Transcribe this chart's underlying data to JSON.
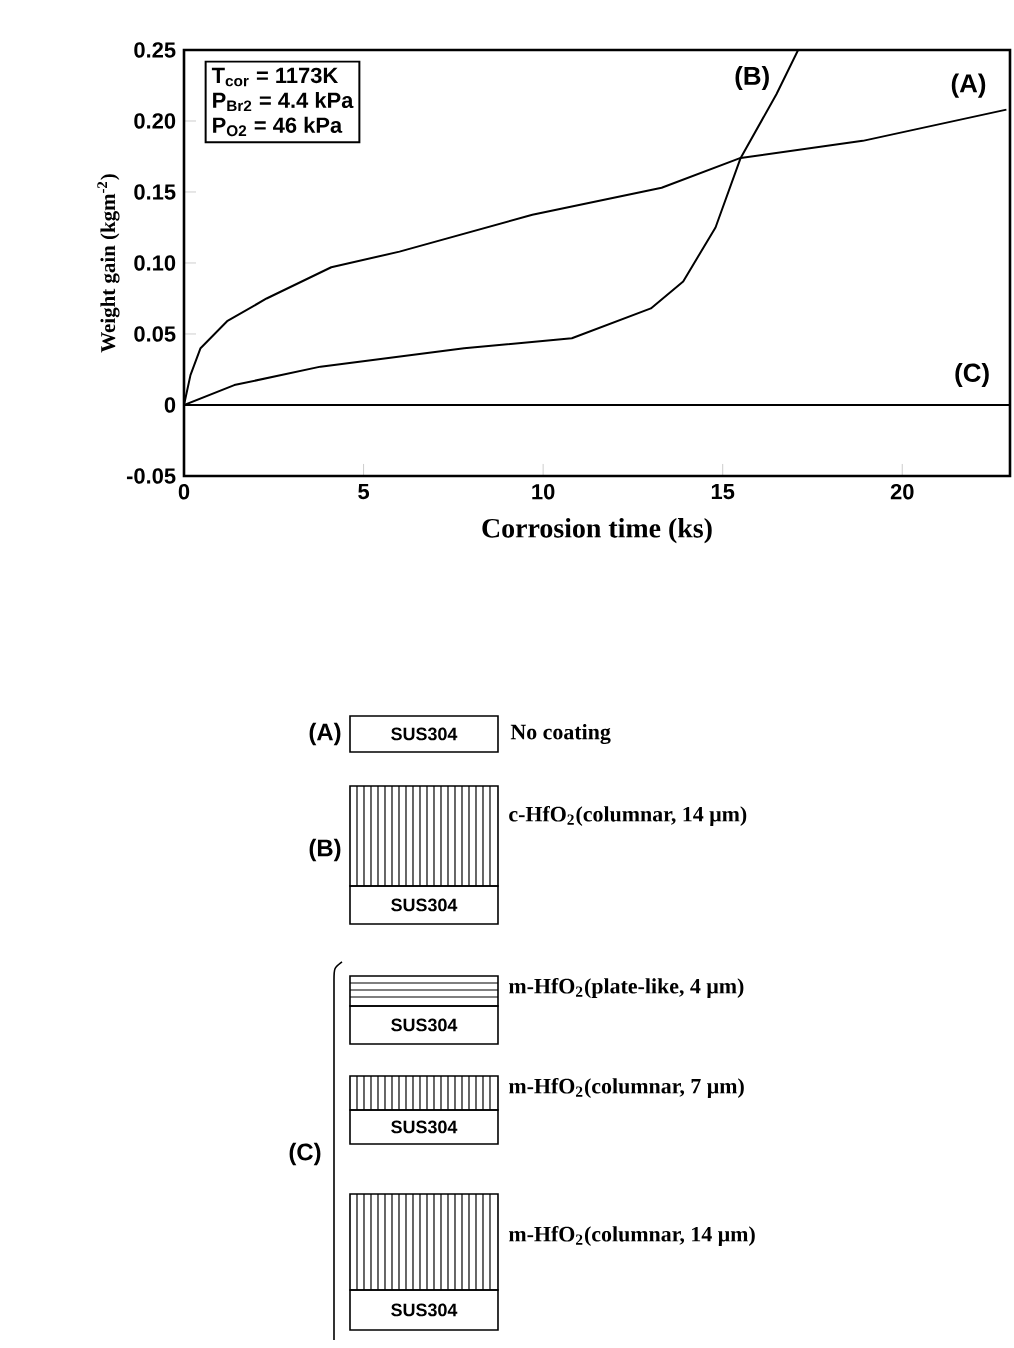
{
  "chart_data": {
    "type": "line",
    "xlabel": "Corrosion time (ks)",
    "ylabel": "Weight gain (kgm$^{-2}$)",
    "xlim": [
      0,
      23
    ],
    "ylim": [
      -0.05,
      0.25
    ],
    "xticks": [
      0,
      5,
      10,
      15,
      20
    ],
    "yticks": [
      -0.05,
      0,
      0.05,
      {
        "value": 0.1,
        "label": "0.10"
      },
      0.15,
      {
        "value": 0.2,
        "label": "0.20"
      },
      0.25
    ],
    "marker": "none",
    "line_style": "solid",
    "series": [
      {
        "name": "(A)",
        "color": "#000000",
        "x": [
          0,
          0.18,
          0.46,
          1.2,
          2.3,
          4.1,
          6.0,
          9.7,
          13.3,
          15.5,
          18.9,
          22.9
        ],
        "values": [
          0,
          0.021,
          0.04,
          0.059,
          0.075,
          0.097,
          0.108,
          0.134,
          0.153,
          0.174,
          0.186,
          0.208
        ]
      },
      {
        "name": "(B)",
        "color": "#000000",
        "x": [
          0,
          1.4,
          3.8,
          7.8,
          10.8,
          13.0,
          13.9,
          14.8,
          15.5,
          16.5,
          17.1
        ],
        "values": [
          0,
          0.014,
          0.027,
          0.04,
          0.047,
          0.068,
          0.087,
          0.125,
          0.174,
          0.219,
          0.25
        ]
      },
      {
        "name": "(C)",
        "color": "#000000",
        "x": [
          0,
          23
        ],
        "values": [
          0,
          0
        ]
      }
    ],
    "annotations": [
      "T$_{cor}$ = 1173K",
      "P$_{Br2}$ = 4.4 kPa",
      "P$_{O2}$ = 46 kPa",
      "(A)",
      "SUS304",
      "No coating",
      "(B)",
      "SUS304",
      "c-HfO$_{2}$(columnar, 14 μm)",
      "(C)",
      "SUS304",
      "m-HfO$_{2}$(plate-like, 4 μm)",
      "SUS304",
      "m-HfO$_{2}$(columnar, 7 μm)",
      "SUS304",
      "m-HfO$_{2}$(columnar, 14 μm)"
    ]
  }
}
